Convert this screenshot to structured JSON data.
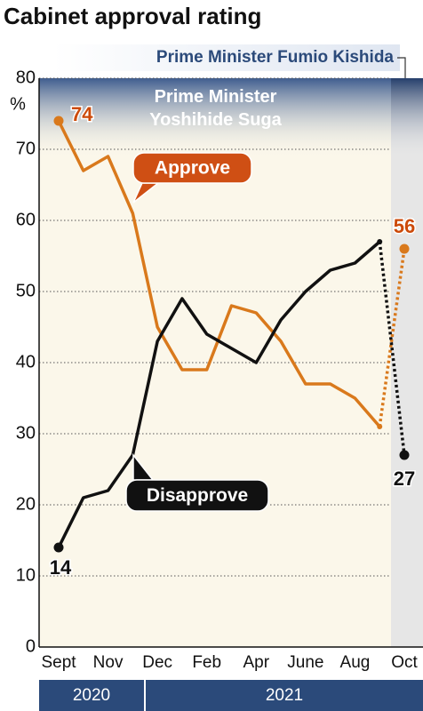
{
  "chart_data": {
    "type": "line",
    "title": "Cabinet approval rating",
    "y_unit": "%",
    "categories": [
      "Sept",
      null,
      "Nov",
      null,
      "Dec",
      null,
      "Feb",
      null,
      "Apr",
      null,
      "June",
      null,
      "Aug",
      null,
      "Oct"
    ],
    "series": [
      {
        "name": "Approve",
        "color": "#d9791c",
        "label_color": "#cc4a0a",
        "box_color": "#cf4f14",
        "dashed_from_index": 13,
        "values": [
          74,
          67,
          69,
          61,
          45,
          39,
          39,
          48,
          47,
          43,
          37,
          37,
          35,
          31,
          56
        ]
      },
      {
        "name": "Disapprove",
        "color": "#111111",
        "label_color": "#111111",
        "box_color": "#111111",
        "dashed_from_index": 13,
        "values": [
          14,
          21,
          22,
          27,
          43,
          49,
          44,
          42,
          40,
          46,
          50,
          53,
          54,
          57,
          27
        ]
      }
    ],
    "eras": [
      {
        "label": "Prime Minister Yoshihide Suga"
      },
      {
        "label": "Prime Minister Fumio Kishida"
      }
    ],
    "years": [
      {
        "label": "2020"
      },
      {
        "label": "2021"
      }
    ],
    "ylim": [
      0,
      80
    ],
    "yticks": [
      0,
      10,
      20,
      30,
      40,
      50,
      60,
      70,
      80
    ],
    "grid": true
  }
}
